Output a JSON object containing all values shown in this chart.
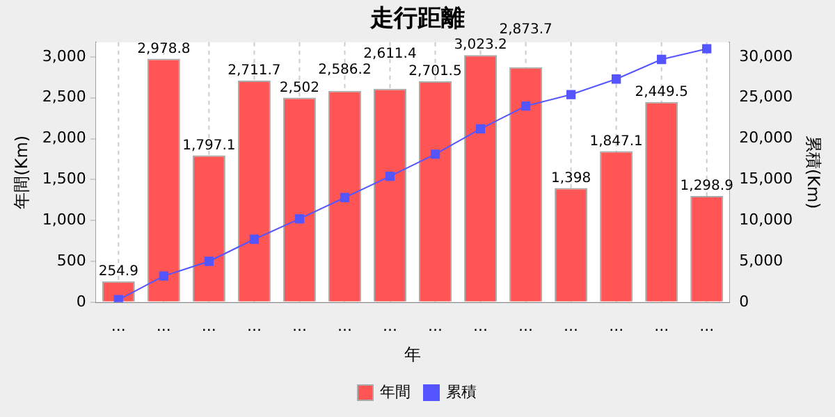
{
  "chart_data": {
    "type": "bar",
    "title": "走行距離",
    "xlabel": "年",
    "ylabel": "年間(Km)",
    "y2label": "累積(Km)",
    "categories": [
      "...",
      "...",
      "...",
      "...",
      "...",
      "...",
      "...",
      "...",
      "...",
      "...",
      "...",
      "...",
      "...",
      "..."
    ],
    "series": [
      {
        "name": "年間",
        "color": "#ff5555",
        "values": [
          254.9,
          2978.8,
          1797.1,
          2711.7,
          2502,
          2586.2,
          2611.4,
          2701.5,
          3023.2,
          2873.7,
          1398,
          1847.1,
          2449.5,
          1298.9
        ],
        "value_labels": [
          "254.9",
          "2,978.8",
          "1,797.1",
          "2,711.7",
          "2,502",
          "2,586.2",
          "2,611.4",
          "2,701.5",
          "3,023.2",
          "2,873.7",
          "1,398",
          "1,847.1",
          "2,449.5",
          "1,298.9"
        ]
      },
      {
        "name": "累積",
        "type": "line",
        "axis": "y2",
        "color": "#5555ff",
        "marker": "square",
        "values": [
          300,
          3200,
          5000,
          7700,
          10200,
          12800,
          15400,
          18100,
          21200,
          24000,
          25400,
          27300,
          29700,
          31000
        ]
      }
    ],
    "ylim": [
      0,
      3180
    ],
    "yticks": [
      {
        "value": 0,
        "label": "0"
      },
      {
        "value": 500,
        "label": "500"
      },
      {
        "value": 1000,
        "label": "1,000"
      },
      {
        "value": 1500,
        "label": "1,500"
      },
      {
        "value": 2000,
        "label": "2,000"
      },
      {
        "value": 2500,
        "label": "2,500"
      },
      {
        "value": 3000,
        "label": "3,000"
      }
    ],
    "y2lim": [
      0,
      31800
    ],
    "y2ticks": [
      {
        "value": 0,
        "label": "0"
      },
      {
        "value": 5000,
        "label": "5,000"
      },
      {
        "value": 10000,
        "label": "10,000"
      },
      {
        "value": 15000,
        "label": "15,000"
      },
      {
        "value": 20000,
        "label": "20,000"
      },
      {
        "value": 25000,
        "label": "25,000"
      },
      {
        "value": 30000,
        "label": "30,000"
      }
    ],
    "grid": true,
    "legend": "bottom"
  }
}
